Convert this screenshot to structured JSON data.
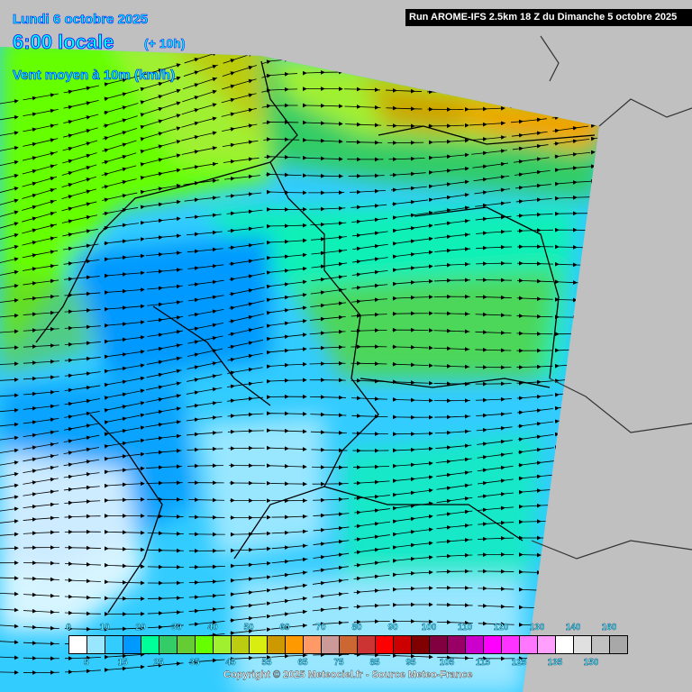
{
  "header": {
    "date": "Lundi 6 octobre 2025",
    "time": "6:00 locale",
    "offset": "(+ 10h)",
    "parameter": "Vent moyen à 10m (km/h)",
    "run": "Run AROME-IFS 2.5km 18 Z du Dimanche 5 octobre 2025"
  },
  "legend": {
    "colors": [
      "#ffffff",
      "#99e6ff",
      "#33ccff",
      "#0099ff",
      "#00ff99",
      "#33cc66",
      "#66cc33",
      "#66ff00",
      "#a0f030",
      "#bbcc11",
      "#d8ee11",
      "#cc9900",
      "#ff9900",
      "#ff9966",
      "#cc9999",
      "#cc6633",
      "#cc3333",
      "#ff0000",
      "#cc0000",
      "#800000",
      "#800040",
      "#990066",
      "#cc00cc",
      "#ff00ff",
      "#ff33ff",
      "#ff77ff",
      "#ffa0ff",
      "#ffffff",
      "#e0e0e0",
      "#c0c0c0",
      "#a8a8a8"
    ],
    "top_labels": [
      "0",
      "10",
      "20",
      "30",
      "40",
      "50",
      "60",
      "70",
      "80",
      "90",
      "100",
      "110",
      "120",
      "130",
      "140",
      "160"
    ],
    "bottom_labels": [
      "5",
      "15",
      "25",
      "35",
      "45",
      "55",
      "65",
      "75",
      "85",
      "95",
      "105",
      "115",
      "125",
      "135",
      "150"
    ]
  },
  "copyright": "Copyright © 2025 Meteociel.fr - Source Meteo-France"
}
